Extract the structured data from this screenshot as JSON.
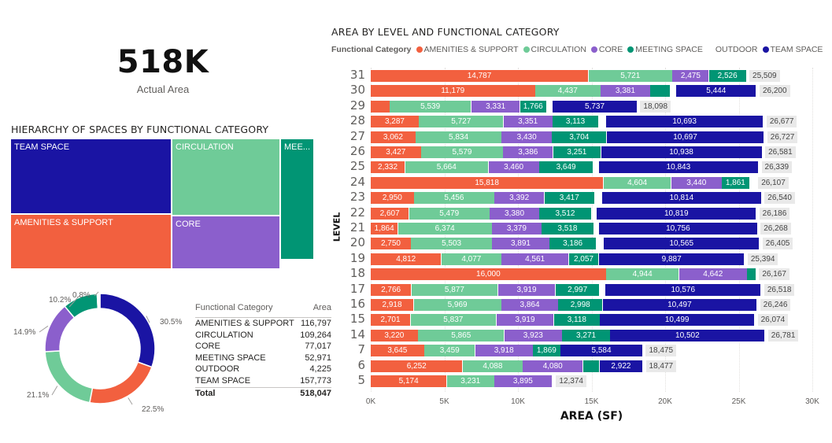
{
  "kpi": {
    "value": "518K",
    "label": "Actual Area"
  },
  "colors": {
    "AMENITIES & SUPPORT": "#f2603f",
    "CIRCULATION": "#6fcb98",
    "CORE": "#8b5fcc",
    "MEETING SPACE": "#019574",
    "OUTDOOR": "#ffffff",
    "TEAM SPACE": "#1a14a3"
  },
  "treemap": {
    "title": "HIERARCHY OF SPACES BY FUNCTIONAL CATEGORY",
    "blocks": [
      {
        "name": "TEAM SPACE",
        "label": "TEAM SPACE"
      },
      {
        "name": "AMENITIES & SUPPORT",
        "label": "AMENITIES & SUPPORT"
      },
      {
        "name": "CIRCULATION",
        "label": "CIRCULATION"
      },
      {
        "name": "CORE",
        "label": "CORE"
      },
      {
        "name": "MEETING SPACE",
        "label": "MEE..."
      }
    ]
  },
  "donut": {
    "slices": [
      {
        "category": "TEAM SPACE",
        "pct_label": "30.5%"
      },
      {
        "category": "AMENITIES & SUPPORT",
        "pct_label": "22.5%"
      },
      {
        "category": "CIRCULATION",
        "pct_label": "21.1%"
      },
      {
        "category": "CORE",
        "pct_label": "14.9%"
      },
      {
        "category": "MEETING SPACE",
        "pct_label": "10.2%"
      },
      {
        "category": "OUTDOOR",
        "pct_label": "0.8%"
      }
    ]
  },
  "table": {
    "headers": [
      "Functional Category",
      "Area"
    ],
    "rows": [
      [
        "AMENITIES & SUPPORT",
        "116,797"
      ],
      [
        "CIRCULATION",
        "109,264"
      ],
      [
        "CORE",
        "77,017"
      ],
      [
        "MEETING SPACE",
        "52,971"
      ],
      [
        "OUTDOOR",
        "4,225"
      ],
      [
        "TEAM SPACE",
        "157,773"
      ]
    ],
    "total": [
      "Total",
      "518,047"
    ]
  },
  "chart_data": {
    "type": "bar",
    "orientation": "horizontal-stacked",
    "title": "AREA BY LEVEL AND FUNCTIONAL CATEGORY",
    "legend_title": "Functional Category",
    "legend_placement": "top-left",
    "xlabel": "AREA (SF)",
    "ylabel": "LEVEL",
    "xlim": [
      0,
      30000
    ],
    "xticks": [
      "0K",
      "5K",
      "10K",
      "15K",
      "20K",
      "25K",
      "30K"
    ],
    "xtick_values": [
      0,
      5000,
      10000,
      15000,
      20000,
      25000,
      30000
    ],
    "grid": true,
    "categories": [
      "31",
      "30",
      "29",
      "28",
      "27",
      "26",
      "25",
      "24",
      "23",
      "22",
      "21",
      "20",
      "19",
      "18",
      "17",
      "16",
      "15",
      "14",
      "7",
      "6",
      "5"
    ],
    "series": [
      {
        "name": "AMENITIES & SUPPORT",
        "values": [
          14787,
          11179,
          1290,
          3287,
          3062,
          3427,
          2332,
          15818,
          2950,
          2607,
          1864,
          2750,
          4812,
          16000,
          2766,
          2918,
          2701,
          3220,
          3645,
          6252,
          5174
        ],
        "labels": [
          "14,787",
          "11,179",
          "",
          "3,287",
          "3,062",
          "3,427",
          "2,332",
          "15,818",
          "2,950",
          "2,607",
          "1,864",
          "2,750",
          "4,812",
          "16,000",
          "2,766",
          "2,918",
          "2,701",
          "3,220",
          "3,645",
          "6,252",
          "5,174"
        ]
      },
      {
        "name": "CIRCULATION",
        "values": [
          5721,
          4437,
          5539,
          5727,
          5834,
          5579,
          5664,
          4604,
          5456,
          5479,
          6374,
          5503,
          4077,
          4944,
          5877,
          5969,
          5837,
          5865,
          3459,
          4088,
          3231
        ],
        "labels": [
          "5,721",
          "4,437",
          "5,539",
          "5,727",
          "5,834",
          "5,579",
          "5,664",
          "4,604",
          "5,456",
          "5,479",
          "6,374",
          "5,503",
          "4,077",
          "4,944",
          "5,877",
          "5,969",
          "5,837",
          "5,865",
          "3,459",
          "4,088",
          "3,231"
        ]
      },
      {
        "name": "CORE",
        "values": [
          2475,
          3381,
          3331,
          3351,
          3430,
          3386,
          3460,
          3440,
          3392,
          3380,
          3379,
          3891,
          4561,
          4642,
          3919,
          3864,
          3919,
          3923,
          3918,
          4080,
          3895
        ],
        "labels": [
          "2,475",
          "3,381",
          "3,331",
          "3,351",
          "3,430",
          "3,386",
          "3,460",
          "3,440",
          "3,392",
          "3,380",
          "3,379",
          "3,891",
          "4,561",
          "4,642",
          "3,919",
          "3,864",
          "3,919",
          "3,923",
          "3,918",
          "4,080",
          "3,895"
        ]
      },
      {
        "name": "MEETING SPACE",
        "values": [
          2526,
          1340,
          1766,
          3113,
          3704,
          3251,
          3649,
          1861,
          3417,
          3512,
          3518,
          3186,
          2057,
          581,
          2997,
          2998,
          3118,
          3271,
          1869,
          1135,
          0
        ],
        "labels": [
          "2,526",
          "",
          "1,766",
          "3,113",
          "3,704",
          "3,251",
          "3,649",
          "1,861",
          "3,417",
          "3,512",
          "3,518",
          "3,186",
          "2,057",
          "",
          "2,997",
          "2,998",
          "3,118",
          "3,271",
          "1,869",
          "",
          ""
        ]
      },
      {
        "name": "OUTDOOR",
        "values": [
          0,
          419,
          435,
          506,
          0,
          0,
          391,
          384,
          511,
          389,
          377,
          510,
          0,
          0,
          383,
          0,
          0,
          0,
          0,
          0,
          74
        ],
        "labels": [
          "",
          "",
          "",
          "",
          "",
          "",
          "",
          "",
          "",
          "",
          "",
          "",
          "",
          "",
          "",
          "",
          "",
          "",
          "",
          "",
          ""
        ]
      },
      {
        "name": "TEAM SPACE",
        "values": [
          0,
          5444,
          5737,
          10693,
          10697,
          10938,
          10843,
          0,
          10814,
          10819,
          10756,
          10565,
          9887,
          0,
          10576,
          10497,
          10499,
          10502,
          5584,
          2922,
          0
        ],
        "labels": [
          "",
          "5,444",
          "5,737",
          "10,693",
          "10,697",
          "10,938",
          "10,843",
          "",
          "10,814",
          "10,819",
          "10,756",
          "10,565",
          "9,887",
          "",
          "10,576",
          "10,497",
          "10,499",
          "10,502",
          "5,584",
          "2,922",
          ""
        ]
      }
    ],
    "totals": [
      25509,
      26200,
      18098,
      26677,
      26727,
      26581,
      26339,
      26107,
      26540,
      26186,
      26268,
      26405,
      25394,
      26167,
      26518,
      26246,
      26074,
      26781,
      18475,
      18477,
      12374
    ],
    "total_labels": [
      "25,509",
      "26,200",
      "18,098",
      "26,677",
      "26,727",
      "26,581",
      "26,339",
      "26,107",
      "26,540",
      "26,186",
      "26,268",
      "26,405",
      "25,394",
      "26,167",
      "26,518",
      "26,246",
      "26,074",
      "26,781",
      "18,475",
      "18,477",
      "12,374"
    ]
  }
}
